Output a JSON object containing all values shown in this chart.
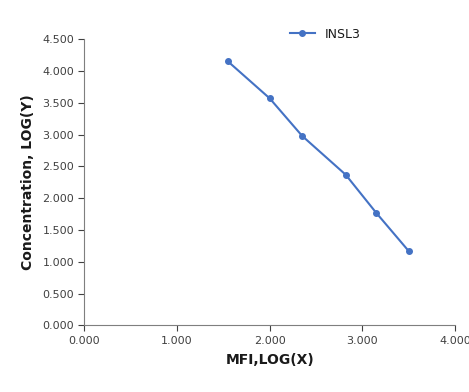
{
  "x": [
    1.55,
    2.0,
    2.35,
    2.82,
    3.15,
    3.5
  ],
  "y": [
    4.15,
    3.57,
    2.98,
    2.37,
    1.77,
    1.17
  ],
  "line_color": "#4472C4",
  "marker": "o",
  "marker_size": 4,
  "line_width": 1.5,
  "legend_label": "INSL3",
  "xlabel": "MFI,LOG(X)",
  "ylabel": "Concentration, LOG(Y)",
  "xlim": [
    0.0,
    4.0
  ],
  "ylim": [
    0.0,
    4.5
  ],
  "xticks": [
    0.0,
    1.0,
    2.0,
    3.0,
    4.0
  ],
  "yticks": [
    0.0,
    0.5,
    1.0,
    1.5,
    2.0,
    2.5,
    3.0,
    3.5,
    4.0,
    4.5
  ],
  "background_color": "#ffffff",
  "axis_label_fontsize": 10,
  "tick_fontsize": 8,
  "legend_fontsize": 9,
  "spine_color": "#7f7f7f",
  "tick_color": "#404040"
}
